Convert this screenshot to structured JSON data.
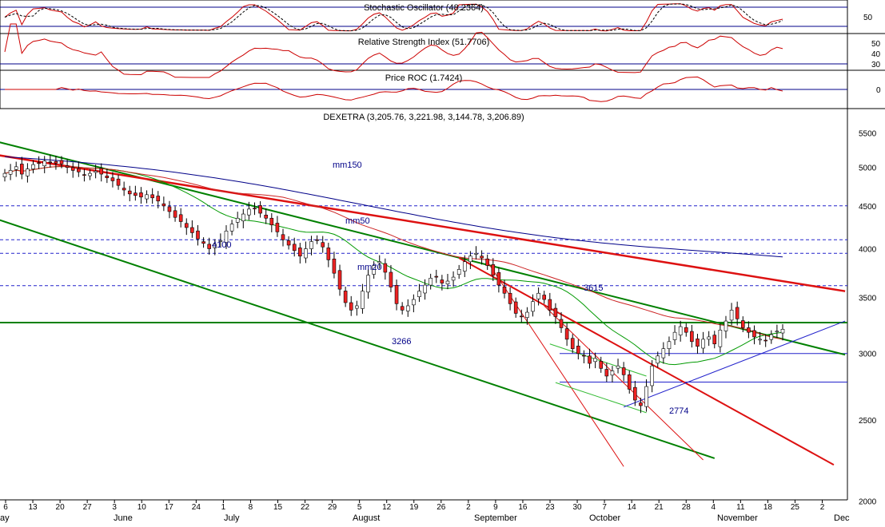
{
  "chart_data": [
    {
      "type": "line",
      "title": "Stochastic Oscillator (48.2364)",
      "series": [],
      "y_ticks": [
        50
      ],
      "reference_lines": [
        20,
        80
      ]
    },
    {
      "type": "line",
      "title": "Relative Strength Index (51.7706)",
      "series": [],
      "y_ticks": [
        50,
        40,
        30
      ],
      "reference_lines": [
        30,
        70
      ]
    },
    {
      "type": "line",
      "title": "Price ROC (1.7424)",
      "series": [],
      "y_ticks": [
        0
      ],
      "reference_lines": [
        0
      ]
    },
    {
      "type": "candlestick",
      "title": "DEXETRA (3,205.76, 3,221.98, 3,144.78, 3,206.89)",
      "y_scale": "log",
      "ylim": [
        2070,
        5750
      ],
      "y_ticks": [
        5500,
        5000,
        4500,
        4000,
        3500,
        3000,
        2500,
        2000
      ],
      "x_ticks": [
        "6",
        "13",
        "20",
        "27",
        "3",
        "10",
        "17",
        "24",
        "1",
        "8",
        "15",
        "22",
        "29",
        "5",
        "12",
        "19",
        "26",
        "2",
        "9",
        "16",
        "23",
        "30",
        "7",
        "14",
        "21",
        "28",
        "4",
        "11",
        "18",
        "25",
        "2"
      ],
      "months": [
        "May",
        "June",
        "July",
        "August",
        "September",
        "October",
        "November",
        "December"
      ],
      "close": [
        4920,
        4960,
        5010,
        4910,
        4980,
        5040,
        5060,
        5090,
        5070,
        5060,
        5050,
        5000,
        4960,
        4940,
        4900,
        4920,
        4950,
        4910,
        4860,
        4820,
        4760,
        4700,
        4650,
        4630,
        4610,
        4640,
        4600,
        4560,
        4500,
        4430,
        4360,
        4310,
        4240,
        4180,
        4110,
        4060,
        4000,
        4050,
        4090,
        4200,
        4280,
        4350,
        4400,
        4460,
        4470,
        4410,
        4350,
        4270,
        4190,
        4100,
        4040,
        3980,
        3920,
        4000,
        4080,
        4100,
        4020,
        3880,
        3740,
        3580,
        3450,
        3380,
        3420,
        3560,
        3720,
        3820,
        3860,
        3750,
        3600,
        3440,
        3380,
        3420,
        3480,
        3560,
        3620,
        3690,
        3700,
        3640,
        3660,
        3700,
        3780,
        3860,
        3920,
        3950,
        3900,
        3820,
        3720,
        3620,
        3540,
        3440,
        3350,
        3320,
        3360,
        3460,
        3540,
        3480,
        3380,
        3320,
        3220,
        3120,
        3040,
        3000,
        2980,
        2920,
        2960,
        2880,
        2820,
        2860,
        2900,
        2830,
        2720,
        2640,
        2600,
        2740,
        2900,
        2980,
        3040,
        3100,
        3180,
        3230,
        3180,
        3100,
        3060,
        3120,
        3140,
        3080,
        3200,
        3280,
        3380,
        3300,
        3220,
        3180,
        3140,
        3120,
        3110,
        3160,
        3190,
        3207
      ],
      "annotations": [
        "mm150",
        "mm50",
        "mm20",
        "4100",
        "3266",
        "3615",
        "2774"
      ],
      "horizontal_levels": [
        4500,
        4100,
        3950,
        3615,
        3000,
        2774
      ],
      "support_level": 3266
    }
  ],
  "labels": {
    "stoch_title": "Stochastic Oscillator (48.2364)",
    "rsi_title": "Relative Strength Index (51.7706)",
    "roc_title": "Price ROC (1.7424)",
    "price_title": "DEXETRA (3,205.76, 3,221.98, 3,144.78, 3,206.89)",
    "ann_mm150": "mm150",
    "ann_mm50": "mm50",
    "ann_mm20": "mm20",
    "ann_4100": "4100",
    "ann_3266": "3266",
    "ann_3615": "3615",
    "ann_2774": "2774",
    "month_may": "ay",
    "month_june": "June",
    "month_july": "July",
    "month_august": "August",
    "month_september": "September",
    "month_october": "October",
    "month_november": "November",
    "month_december": "Dec"
  },
  "colors": {
    "up_candle": "#ffffff",
    "down_candle": "#ee2222",
    "candle_outline": "#000000",
    "trend_green": "#008000",
    "trend_red": "#dd1111",
    "ma_blue": "#000088",
    "level_blue": "#2222cc",
    "osc_red": "#cc0000",
    "sma20_green": "#009900",
    "sma50_red": "#cc2222"
  }
}
